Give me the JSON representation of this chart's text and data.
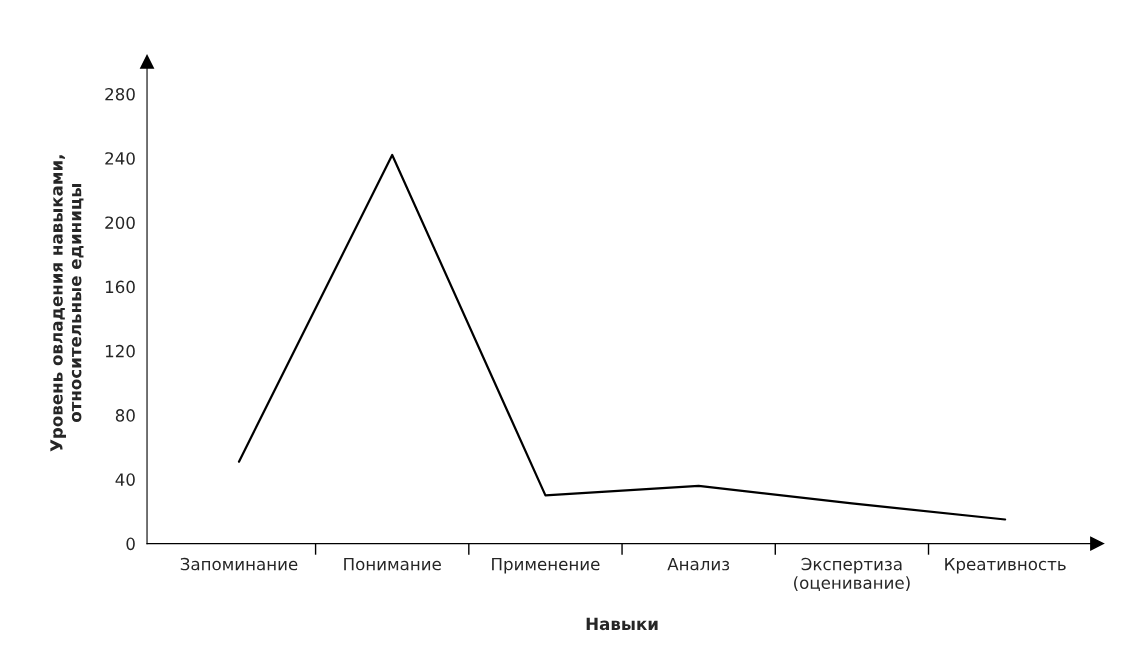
{
  "chart_data": {
    "type": "line",
    "xlabel": "Навыки",
    "ylabel": "Уровень овладения навыками,\nотносительные единицы",
    "categories": [
      "Запоминание",
      "Понимание",
      "Применение",
      "Анализ",
      "Экспертиза\n(оценивание)",
      "Креативность"
    ],
    "series": [
      {
        "color": "#000000",
        "values": [
          51,
          242,
          30,
          36,
          25,
          15
        ]
      }
    ],
    "ylim": [
      0,
      300
    ],
    "yticks": [
      0,
      40,
      80,
      120,
      160,
      200,
      240,
      280
    ],
    "grid": false,
    "marker": "none",
    "line_style": "solid"
  }
}
